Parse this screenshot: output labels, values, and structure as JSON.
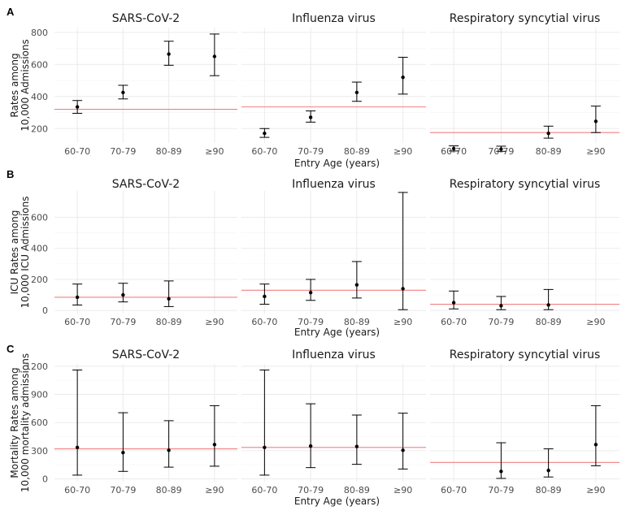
{
  "chart_data": [
    {
      "panel_label": "A",
      "type": "scatter",
      "ylabel": [
        "Rates among",
        "10,000 Admissions"
      ],
      "xlabel": "Entry Age (years)",
      "categories": [
        "60-70",
        "70-79",
        "80-89",
        "≥90"
      ],
      "ylim": [
        110,
        830
      ],
      "yticks": [
        200,
        400,
        600,
        800
      ],
      "grid": true,
      "facets": [
        {
          "title": "SARS-CoV-2",
          "reference": 320,
          "points": [
            {
              "x": "60-70",
              "y": 335,
              "low": 295,
              "high": 375
            },
            {
              "x": "70-79",
              "y": 425,
              "low": 385,
              "high": 470
            },
            {
              "x": "80-89",
              "y": 665,
              "low": 595,
              "high": 745
            },
            {
              "x": "≥90",
              "y": 650,
              "low": 530,
              "high": 790
            }
          ]
        },
        {
          "title": "Influenza virus",
          "reference": 335,
          "points": [
            {
              "x": "60-70",
              "y": 170,
              "low": 145,
              "high": 200
            },
            {
              "x": "70-79",
              "y": 270,
              "low": 240,
              "high": 310
            },
            {
              "x": "80-89",
              "y": 425,
              "low": 370,
              "high": 490
            },
            {
              "x": "≥90",
              "y": 520,
              "low": 415,
              "high": 645
            }
          ]
        },
        {
          "title": "Respiratory syncytial virus",
          "reference": 175,
          "points": [
            {
              "x": "60-70",
              "y": 75,
              "low": 60,
              "high": 92
            },
            {
              "x": "70-79",
              "y": 72,
              "low": 58,
              "high": 90
            },
            {
              "x": "80-89",
              "y": 170,
              "low": 140,
              "high": 215
            },
            {
              "x": "≥90",
              "y": 245,
              "low": 175,
              "high": 340
            }
          ]
        }
      ]
    },
    {
      "panel_label": "B",
      "type": "scatter",
      "ylabel": [
        "ICU Rates among",
        "10,000 ICU Admissions"
      ],
      "xlabel": "Entry Age (years)",
      "categories": [
        "60-70",
        "70-79",
        "80-89",
        "≥90"
      ],
      "ylim": [
        -20,
        770
      ],
      "yticks": [
        0,
        200,
        400,
        600
      ],
      "grid": true,
      "facets": [
        {
          "title": "SARS-CoV-2",
          "reference": 85,
          "points": [
            {
              "x": "60-70",
              "y": 85,
              "low": 35,
              "high": 170
            },
            {
              "x": "70-79",
              "y": 100,
              "low": 55,
              "high": 175
            },
            {
              "x": "80-89",
              "y": 75,
              "low": 25,
              "high": 190
            }
          ]
        },
        {
          "title": "Influenza virus",
          "reference": 130,
          "points": [
            {
              "x": "60-70",
              "y": 90,
              "low": 40,
              "high": 170
            },
            {
              "x": "70-79",
              "y": 115,
              "low": 65,
              "high": 200
            },
            {
              "x": "80-89",
              "y": 165,
              "low": 80,
              "high": 315
            },
            {
              "x": "≥90",
              "y": 140,
              "low": 5,
              "high": 760
            }
          ]
        },
        {
          "title": "Respiratory syncytial virus",
          "reference": 40,
          "points": [
            {
              "x": "60-70",
              "y": 50,
              "low": 10,
              "high": 125
            },
            {
              "x": "70-79",
              "y": 30,
              "low": 5,
              "high": 90
            },
            {
              "x": "80-89",
              "y": 35,
              "low": 5,
              "high": 135
            }
          ]
        }
      ]
    },
    {
      "panel_label": "C",
      "type": "scatter",
      "ylabel": [
        "Mortality Rates among",
        "10,000 mortality admissions"
      ],
      "xlabel": "Entry Age (years)",
      "categories": [
        "60-70",
        "70-79",
        "80-89",
        "≥90"
      ],
      "ylim": [
        -30,
        1225
      ],
      "yticks": [
        0,
        300,
        600,
        900,
        1200
      ],
      "grid": true,
      "facets": [
        {
          "title": "SARS-CoV-2",
          "reference": 320,
          "points": [
            {
              "x": "60-70",
              "y": 335,
              "low": 40,
              "high": 1160
            },
            {
              "x": "70-79",
              "y": 280,
              "low": 80,
              "high": 705
            },
            {
              "x": "80-89",
              "y": 305,
              "low": 125,
              "high": 620
            },
            {
              "x": "≥90",
              "y": 365,
              "low": 135,
              "high": 780
            }
          ]
        },
        {
          "title": "Influenza virus",
          "reference": 335,
          "points": [
            {
              "x": "60-70",
              "y": 335,
              "low": 40,
              "high": 1160
            },
            {
              "x": "70-79",
              "y": 350,
              "low": 120,
              "high": 800
            },
            {
              "x": "80-89",
              "y": 345,
              "low": 155,
              "high": 680
            },
            {
              "x": "≥90",
              "y": 305,
              "low": 105,
              "high": 700
            }
          ]
        },
        {
          "title": "Respiratory syncytial virus",
          "reference": 175,
          "points": [
            {
              "x": "70-79",
              "y": 80,
              "low": 5,
              "high": 385
            },
            {
              "x": "80-89",
              "y": 90,
              "low": 20,
              "high": 320
            },
            {
              "x": "≥90",
              "y": 365,
              "low": 140,
              "high": 780
            }
          ]
        }
      ]
    }
  ],
  "colors": {
    "reference_line": "#f08080",
    "points": "#000000",
    "grid": "#ebebeb",
    "grid_minor": "#f5f5f5"
  }
}
